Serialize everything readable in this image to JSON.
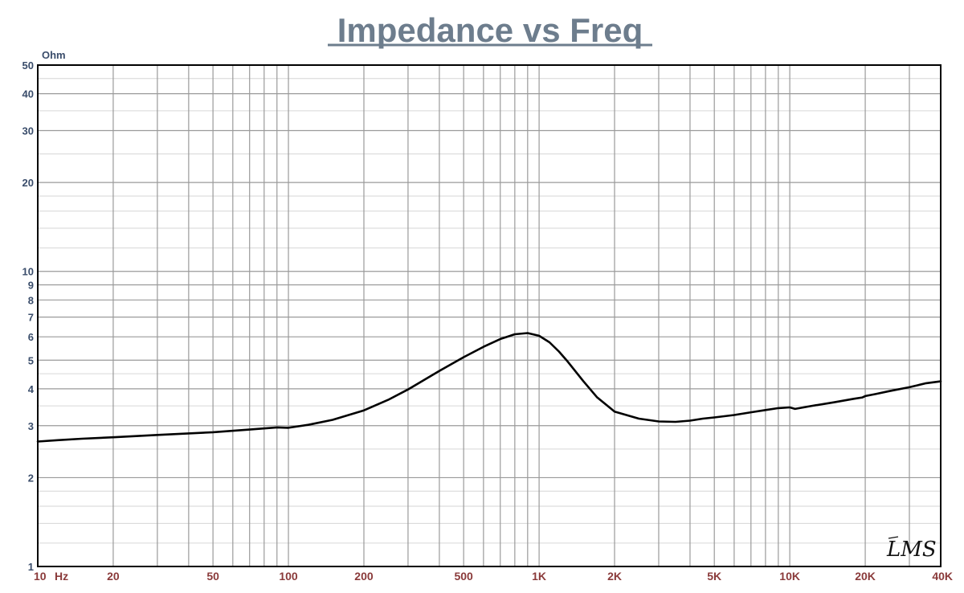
{
  "chart_data": {
    "type": "line",
    "title": "Impedance vs Freq",
    "ylabel": "Ohm",
    "xscale": "log",
    "yscale": "log",
    "xlim": [
      10,
      40000
    ],
    "ylim": [
      1,
      50
    ],
    "grid": true,
    "x_tick_labels": [
      {
        "value": 10,
        "label": "10"
      },
      {
        "value": 20,
        "label": "20"
      },
      {
        "value": 50,
        "label": "50"
      },
      {
        "value": 100,
        "label": "100"
      },
      {
        "value": 200,
        "label": "200"
      },
      {
        "value": 500,
        "label": "500"
      },
      {
        "value": 1000,
        "label": "1K"
      },
      {
        "value": 2000,
        "label": "2K"
      },
      {
        "value": 5000,
        "label": "5K"
      },
      {
        "value": 10000,
        "label": "10K"
      },
      {
        "value": 20000,
        "label": "20K"
      },
      {
        "value": 40000,
        "label": "40K"
      }
    ],
    "x_unit": "Hz",
    "y_tick_labels": [
      {
        "value": 1,
        "label": "1"
      },
      {
        "value": 2,
        "label": "2"
      },
      {
        "value": 3,
        "label": "3"
      },
      {
        "value": 4,
        "label": "4"
      },
      {
        "value": 5,
        "label": "5"
      },
      {
        "value": 6,
        "label": "6"
      },
      {
        "value": 7,
        "label": "7"
      },
      {
        "value": 8,
        "label": "8"
      },
      {
        "value": 9,
        "label": "9"
      },
      {
        "value": 10,
        "label": "10"
      },
      {
        "value": 20,
        "label": "20"
      },
      {
        "value": 30,
        "label": "30"
      },
      {
        "value": 40,
        "label": "40"
      },
      {
        "value": 50,
        "label": "50"
      }
    ],
    "series": [
      {
        "color": "#000000",
        "x": [
          10,
          12,
          15,
          20,
          30,
          50,
          70,
          90,
          100,
          120,
          150,
          200,
          250,
          300,
          400,
          500,
          600,
          700,
          800,
          900,
          1000,
          1100,
          1200,
          1300,
          1500,
          1700,
          2000,
          2500,
          3000,
          3500,
          4000,
          4500,
          5000,
          6000,
          7000,
          8000,
          9000,
          10000,
          10500,
          12000,
          15000,
          18000,
          19500,
          20000,
          22000,
          25000,
          30000,
          35000,
          40000
        ],
        "y": [
          2.65,
          2.68,
          2.71,
          2.74,
          2.79,
          2.85,
          2.91,
          2.96,
          2.95,
          3.02,
          3.14,
          3.38,
          3.67,
          3.98,
          4.6,
          5.12,
          5.55,
          5.9,
          6.12,
          6.18,
          6.05,
          5.75,
          5.35,
          4.95,
          4.25,
          3.75,
          3.35,
          3.17,
          3.1,
          3.09,
          3.12,
          3.17,
          3.2,
          3.26,
          3.33,
          3.39,
          3.44,
          3.46,
          3.42,
          3.49,
          3.6,
          3.7,
          3.74,
          3.78,
          3.84,
          3.93,
          4.05,
          4.18,
          4.24
        ]
      }
    ],
    "logo_text": "LMS"
  }
}
